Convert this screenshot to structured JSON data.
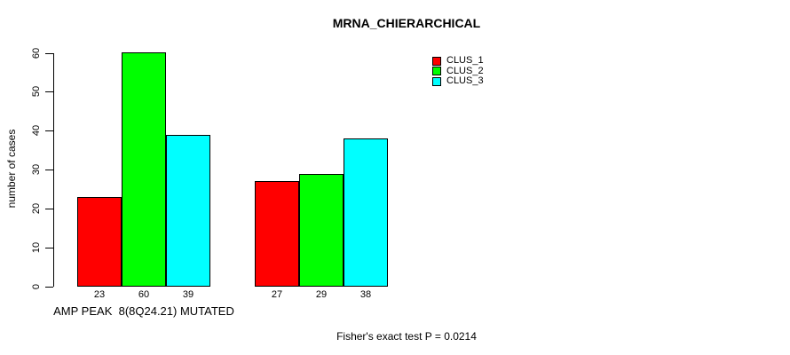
{
  "page": {
    "background": "#ffffff",
    "text_color": "#000000"
  },
  "chart_data": {
    "type": "bar",
    "title": "MRNA_CHIERARCHICAL",
    "xlabel": "",
    "ylabel": "number of cases",
    "categories": [
      "AMP PEAK  8(8Q24.21) MUTATED",
      ""
    ],
    "series": [
      {
        "name": "CLUS_1",
        "color": "#ff0000",
        "values": [
          23,
          27
        ]
      },
      {
        "name": "CLUS_2",
        "color": "#00ff00",
        "values": [
          60,
          29
        ]
      },
      {
        "name": "CLUS_3",
        "color": "#00ffff",
        "values": [
          39,
          38
        ]
      }
    ],
    "ylim": [
      0,
      60
    ],
    "yticks": [
      0,
      10,
      20,
      30,
      40,
      50,
      60
    ],
    "grid": false,
    "bar_value_labels": true,
    "legend_position": "top-right",
    "annotation": "Fisher's exact test P = 0.0214"
  }
}
